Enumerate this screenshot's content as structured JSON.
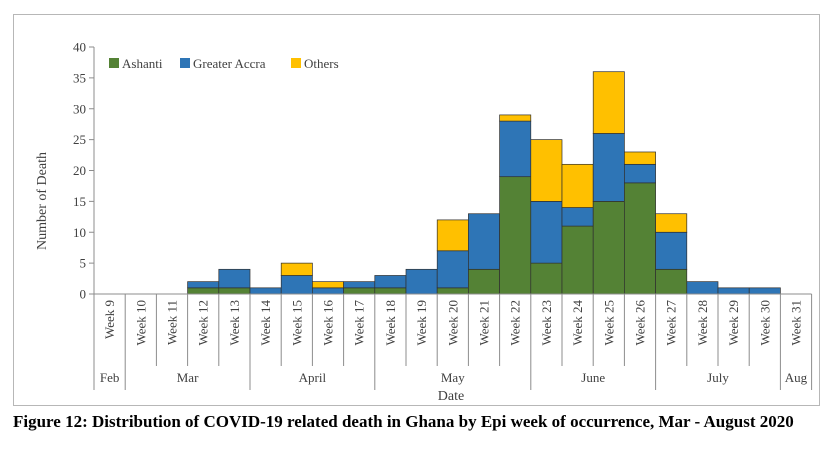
{
  "chart_data": {
    "type": "bar",
    "stacked": true,
    "title": "",
    "xlabel": "Date",
    "ylabel": "Number of Death",
    "ylim": [
      0,
      40
    ],
    "yticks": [
      0,
      5,
      10,
      15,
      20,
      25,
      30,
      35,
      40
    ],
    "grid": false,
    "legend_position": "top-left",
    "categories": [
      "Week 9",
      "Week 10",
      "Week 11",
      "Week 12",
      "Week 13",
      "Week 14",
      "Week 15",
      "Week 16",
      "Week 17",
      "Week 18",
      "Week 19",
      "Week 20",
      "Week 21",
      "Week 22",
      "Week 23",
      "Week 24",
      "Week 25",
      "Week 26",
      "Week 27",
      "Week 28",
      "Week 29",
      "Week 30",
      "Week 31"
    ],
    "month_groups": [
      {
        "label": "Feb",
        "start": 0,
        "end": 0
      },
      {
        "label": "Mar",
        "start": 1,
        "end": 4
      },
      {
        "label": "April",
        "start": 5,
        "end": 8
      },
      {
        "label": "May",
        "start": 9,
        "end": 13
      },
      {
        "label": "June",
        "start": 14,
        "end": 17
      },
      {
        "label": "July",
        "start": 18,
        "end": 21
      },
      {
        "label": "Aug",
        "start": 22,
        "end": 22
      }
    ],
    "series": [
      {
        "name": "Ashanti",
        "color": "#548235",
        "values": [
          0,
          0,
          0,
          1,
          1,
          0,
          0,
          0,
          1,
          1,
          0,
          1,
          4,
          19,
          5,
          11,
          15,
          18,
          4,
          0,
          0,
          0,
          0
        ]
      },
      {
        "name": "Greater Accra",
        "color": "#2e75b6",
        "values": [
          0,
          0,
          0,
          1,
          3,
          1,
          3,
          1,
          1,
          2,
          4,
          6,
          9,
          9,
          10,
          3,
          11,
          3,
          6,
          2,
          1,
          1,
          0
        ]
      },
      {
        "name": "Others",
        "color": "#ffc000",
        "values": [
          0,
          0,
          0,
          0,
          0,
          0,
          2,
          1,
          0,
          0,
          0,
          5,
          0,
          1,
          10,
          7,
          10,
          2,
          3,
          0,
          0,
          0,
          0
        ]
      }
    ]
  },
  "caption": "Figure 12: Distribution of COVID-19 related death in Ghana by Epi week of occurrence, Mar - August 2020"
}
